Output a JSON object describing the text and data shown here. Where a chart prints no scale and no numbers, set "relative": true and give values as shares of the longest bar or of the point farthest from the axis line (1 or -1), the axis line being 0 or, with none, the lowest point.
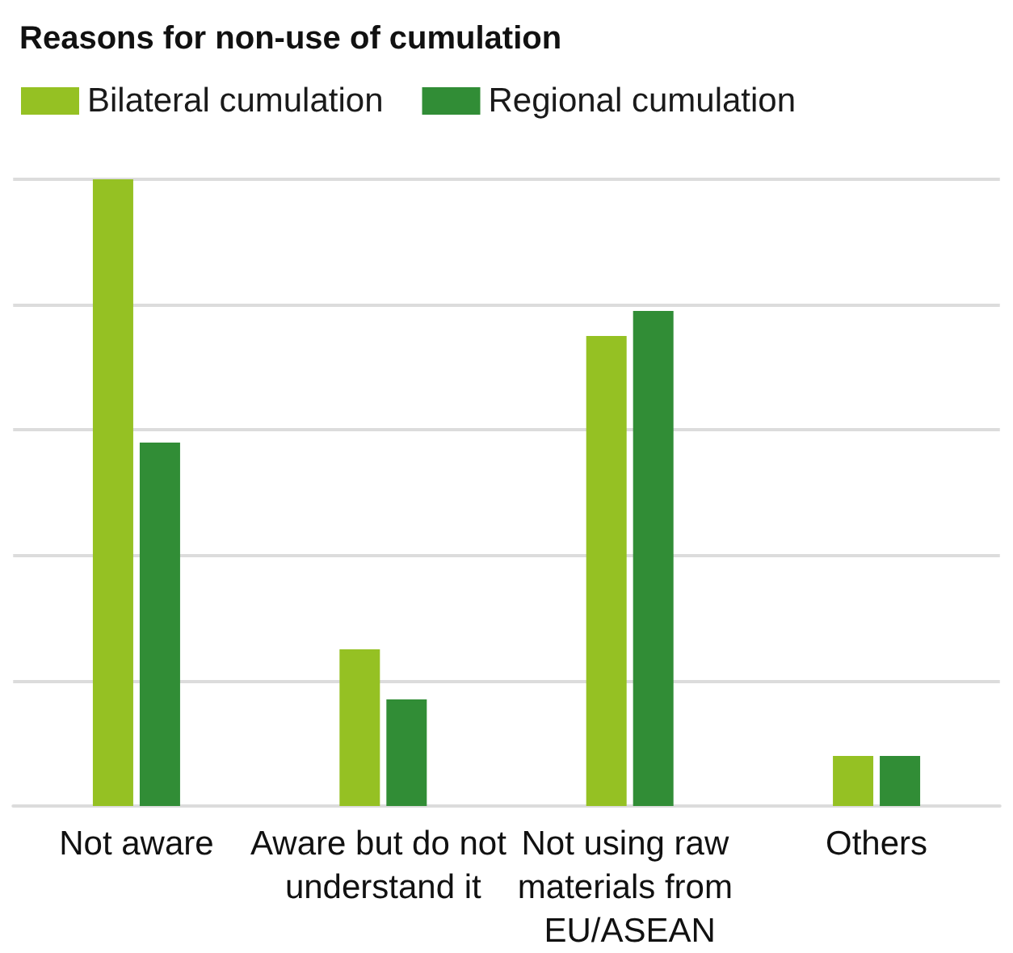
{
  "chart_data": {
    "type": "bar",
    "title": "Reasons for non-use of cumulation",
    "categories": [
      "Not aware",
      "Aware but do not understand it",
      "Not using raw materials from EU/ASEAN",
      "Others"
    ],
    "series": [
      {
        "name": "Bilateral cumulation",
        "color": "#95c123",
        "values": [
          1,
          0.25,
          0.75,
          0.08
        ]
      },
      {
        "name": "Regional cumulation",
        "color": "#318d36",
        "values": [
          0.58,
          0.17,
          0.79,
          0.08
        ]
      }
    ],
    "relative": true,
    "grid": "y",
    "legend": "top left"
  }
}
